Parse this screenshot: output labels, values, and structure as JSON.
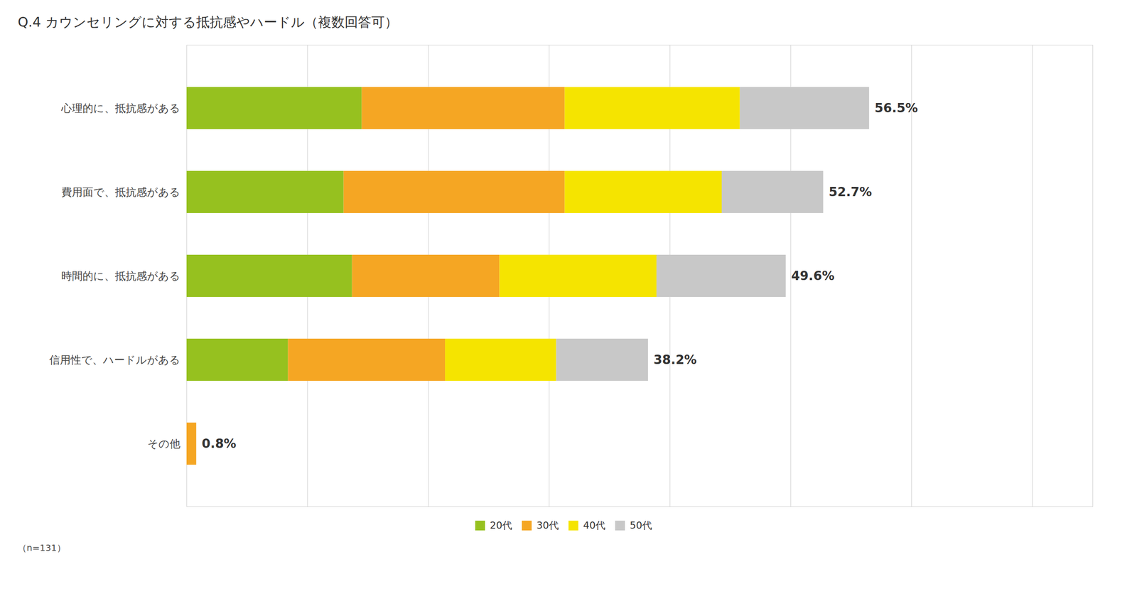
{
  "chart_data": {
    "type": "bar",
    "orientation": "horizontal",
    "stacked": true,
    "title": "Q.4 カウンセリングに対する抵抗感やハードル（複数回答可）",
    "categories": [
      "心理的に、抵抗感がある",
      "費用面で、抵抗感がある",
      "時間的に、抵抗感がある",
      "信用性で、ハードルがある",
      "その他"
    ],
    "series": [
      {
        "name": "20代",
        "color": "#96c11f",
        "values": [
          14.5,
          13.0,
          13.7,
          8.4,
          0.0
        ]
      },
      {
        "name": "30代",
        "color": "#f5a623",
        "values": [
          16.8,
          18.3,
          12.2,
          13.0,
          0.8
        ]
      },
      {
        "name": "40代",
        "color": "#f5e400",
        "values": [
          14.5,
          13.0,
          13.0,
          9.2,
          0.0
        ]
      },
      {
        "name": "50代",
        "color": "#c8c8c8",
        "values": [
          10.7,
          8.4,
          10.7,
          7.6,
          0.0
        ]
      }
    ],
    "totals": [
      56.5,
      52.7,
      49.6,
      38.2,
      0.8
    ],
    "total_labels": [
      "56.5%",
      "52.7%",
      "49.6%",
      "38.2%",
      "0.8%"
    ],
    "xlim": [
      0,
      75
    ],
    "xticks": [
      0,
      10,
      20,
      30,
      40,
      50,
      60,
      70
    ],
    "grid": true,
    "tick_labels": "y",
    "legend": "bottom",
    "annotations": [
      "（n=131）"
    ]
  }
}
